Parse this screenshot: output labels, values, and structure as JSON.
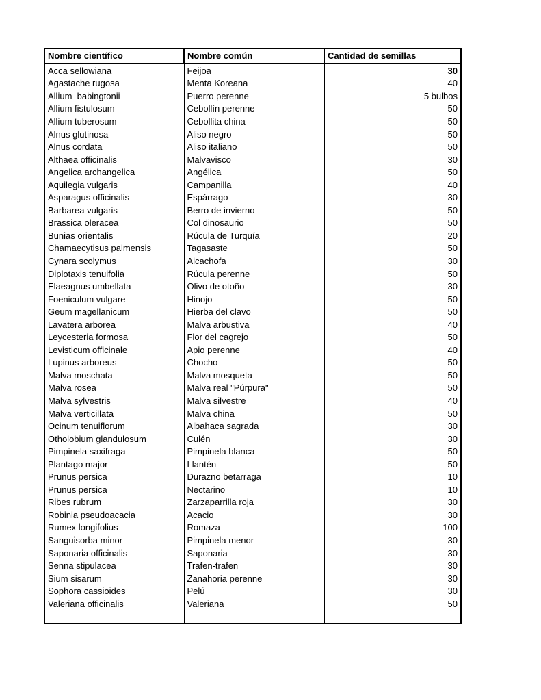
{
  "document": {
    "type": "seed-inventory-table",
    "background_color": "#ffffff",
    "text_color": "#000000",
    "border_color": "#000000"
  },
  "table": {
    "headers": [
      "Nombre científico",
      "Nombre común",
      "Cantidad de semillas"
    ],
    "empty_trailing_rows": 1,
    "rows": [
      {
        "cientifico": "Acca sellowiana",
        "comun": "Feijoa",
        "cantidad": "30",
        "cantidad_bold": true
      },
      {
        "cientifico": "Agastache rugosa",
        "comun": "Menta Koreana",
        "cantidad": "40"
      },
      {
        "cientifico": "Allium  babingtonii",
        "comun": "Puerro perenne",
        "cantidad": "5 bulbos"
      },
      {
        "cientifico": "Allium fistulosum",
        "comun": "Cebollín perenne",
        "cantidad": "50"
      },
      {
        "cientifico": "Allium tuberosum",
        "comun": "Cebollita china",
        "cantidad": "50"
      },
      {
        "cientifico": "Alnus glutinosa",
        "comun": "Aliso negro",
        "cantidad": "50"
      },
      {
        "cientifico": "Alnus cordata",
        "comun": "Aliso italiano",
        "cantidad": "50"
      },
      {
        "cientifico": "Althaea officinalis",
        "comun": "Malvavisco",
        "cantidad": "30"
      },
      {
        "cientifico": "Angelica archangelica",
        "comun": "Angélica",
        "cantidad": "50"
      },
      {
        "cientifico": "Aquilegia vulgaris",
        "comun": "Campanilla",
        "cantidad": "40"
      },
      {
        "cientifico": "Asparagus officinalis",
        "comun": "Espárrago",
        "cantidad": "30"
      },
      {
        "cientifico": "Barbarea vulgaris",
        "comun": "Berro de invierno",
        "cantidad": "50"
      },
      {
        "cientifico": "Brassica oleracea",
        "comun": "Col dinosaurio",
        "cantidad": "50"
      },
      {
        "cientifico": "Bunias orientalis",
        "comun": "Rúcula de Turquía",
        "cantidad": "20"
      },
      {
        "cientifico": "Chamaecytisus palmensis",
        "comun": "Tagasaste",
        "cantidad": "50"
      },
      {
        "cientifico": "Cynara scolymus",
        "comun": "Alcachofa",
        "cantidad": "30"
      },
      {
        "cientifico": "Diplotaxis tenuifolia",
        "comun": "Rúcula perenne",
        "cantidad": "50"
      },
      {
        "cientifico": "Elaeagnus umbellata",
        "comun": "Olivo de otoño",
        "cantidad": "30"
      },
      {
        "cientifico": "Foeniculum vulgare",
        "comun": "Hinojo",
        "cantidad": "50"
      },
      {
        "cientifico": "Geum magellanicum",
        "comun": "Hierba del clavo",
        "cantidad": "50"
      },
      {
        "cientifico": "Lavatera arborea",
        "comun": "Malva arbustiva",
        "cantidad": "40"
      },
      {
        "cientifico": "Leycesteria formosa",
        "comun": "Flor del cagrejo",
        "cantidad": "50"
      },
      {
        "cientifico": "Levisticum officinale",
        "comun": "Apio perenne",
        "cantidad": "40"
      },
      {
        "cientifico": "Lupinus arboreus",
        "comun": "Chocho",
        "cantidad": "50"
      },
      {
        "cientifico": "Malva moschata",
        "comun": "Malva mosqueta",
        "cantidad": "50"
      },
      {
        "cientifico": "Malva rosea",
        "comun": "Malva real \"Púrpura\"",
        "cantidad": "50"
      },
      {
        "cientifico": "Malva sylvestris",
        "comun": "Malva silvestre",
        "cantidad": "40"
      },
      {
        "cientifico": "Malva verticillata",
        "comun": "Malva china",
        "cantidad": "50"
      },
      {
        "cientifico": "Ocinum tenuiflorum",
        "comun": "Albahaca sagrada",
        "cantidad": "30"
      },
      {
        "cientifico": "Otholobium glandulosum",
        "comun": "Culén",
        "cantidad": "30"
      },
      {
        "cientifico": "Pimpinela saxifraga",
        "comun": "Pimpinela blanca",
        "cantidad": "50"
      },
      {
        "cientifico": "Plantago major",
        "comun": "Llantén",
        "cantidad": "50"
      },
      {
        "cientifico": "Prunus persica",
        "comun": "Durazno betarraga",
        "cantidad": "10"
      },
      {
        "cientifico": "Prunus persica",
        "comun": "Nectarino",
        "cantidad": "10"
      },
      {
        "cientifico": "Ribes rubrum",
        "comun": "Zarzaparrilla roja",
        "cantidad": "30"
      },
      {
        "cientifico": "Robinia pseudoacacia",
        "comun": "Acacio",
        "cantidad": "30"
      },
      {
        "cientifico": "Rumex longifolius",
        "comun": "Romaza",
        "cantidad": "100"
      },
      {
        "cientifico": "Sanguisorba minor",
        "comun": "Pimpinela menor",
        "cantidad": "30"
      },
      {
        "cientifico": "Saponaria officinalis",
        "comun": "Saponaria",
        "cantidad": "30"
      },
      {
        "cientifico": "Senna stipulacea",
        "comun": "Trafen-trafen",
        "cantidad": "30"
      },
      {
        "cientifico": "Sium sisarum",
        "comun": "Zanahoria perenne",
        "cantidad": "30"
      },
      {
        "cientifico": "Sophora cassioides",
        "comun": "Pelú",
        "cantidad": "30"
      },
      {
        "cientifico": "Valeriana officinalis",
        "comun": "Valeriana",
        "cantidad": "50"
      }
    ]
  }
}
